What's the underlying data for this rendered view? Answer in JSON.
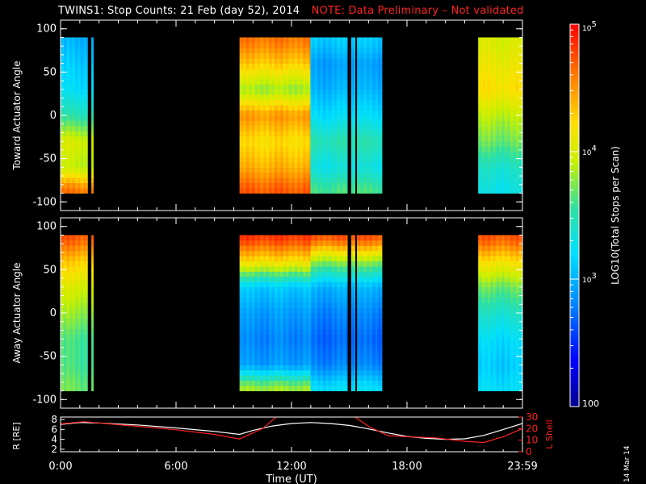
{
  "title": {
    "main": "TWINS1: Stop Counts: 21 Feb (day  52), 2014",
    "note": "NOTE: Data Preliminary – Not validated"
  },
  "datestamp": "14 Mar 14",
  "colorbar": {
    "label": "LOG10(Total Stops per Scan)",
    "ticks": [
      "10^5",
      "10^4",
      "10^3",
      "100"
    ],
    "tick_values": [
      100000,
      10000,
      1000,
      100
    ],
    "scale": "log",
    "range": [
      100,
      100000
    ]
  },
  "chart_data": [
    {
      "type": "heatmap",
      "title": "",
      "ylabel": "Toward Actuator Angle",
      "ylim": [
        -110,
        110
      ],
      "yticks": [
        100,
        50,
        0,
        -50,
        -100
      ],
      "xlim_hours": [
        0,
        24
      ],
      "data_extent_y": [
        -90,
        90
      ],
      "coverage_hours": [
        [
          0.0,
          1.4
        ],
        [
          1.6,
          1.7
        ],
        [
          9.3,
          14.9
        ],
        [
          15.1,
          15.3
        ],
        [
          15.4,
          16.7
        ],
        [
          21.7,
          24.0
        ]
      ],
      "value_note": "counts per scan, log color scale",
      "series": [
        {
          "name": "0:00-1:40",
          "angles": [
            -85,
            -60,
            -30,
            0,
            30,
            60,
            85
          ],
          "log_counts": [
            4.6,
            3.9,
            4.0,
            3.5,
            3.2,
            3.1,
            3.0
          ]
        },
        {
          "name": "9:20-13:00",
          "angles": [
            -85,
            -60,
            -30,
            0,
            30,
            60,
            85
          ],
          "log_counts": [
            4.7,
            4.4,
            4.2,
            4.5,
            3.8,
            4.3,
            4.6
          ]
        },
        {
          "name": "13:00-16:40",
          "angles": [
            -85,
            -60,
            -30,
            0,
            30,
            60,
            85
          ],
          "log_counts": [
            3.6,
            3.3,
            3.5,
            3.2,
            3.0,
            2.9,
            3.1
          ]
        },
        {
          "name": "21:40-24:00",
          "angles": [
            -85,
            -60,
            -30,
            0,
            30,
            60,
            85
          ],
          "log_counts": [
            3.3,
            3.4,
            3.7,
            3.9,
            4.2,
            4.1,
            4.0
          ]
        }
      ]
    },
    {
      "type": "heatmap",
      "title": "",
      "ylabel": "Away Actuator Angle",
      "ylim": [
        -110,
        110
      ],
      "yticks": [
        100,
        50,
        0,
        -50,
        -100
      ],
      "xlim_hours": [
        0,
        24
      ],
      "data_extent_y": [
        -90,
        90
      ],
      "coverage_hours": [
        [
          0.0,
          1.4
        ],
        [
          1.6,
          1.7
        ],
        [
          9.3,
          14.9
        ],
        [
          15.1,
          15.3
        ],
        [
          15.4,
          16.7
        ],
        [
          21.7,
          24.0
        ]
      ],
      "value_note": "counts per scan, log color scale",
      "series": [
        {
          "name": "0:00-1:40",
          "angles": [
            -85,
            -60,
            -30,
            0,
            30,
            60,
            85
          ],
          "log_counts": [
            3.7,
            3.6,
            3.6,
            3.8,
            4.0,
            4.3,
            4.7
          ]
        },
        {
          "name": "9:20-13:00",
          "angles": [
            -85,
            -60,
            -30,
            0,
            30,
            60,
            85
          ],
          "log_counts": [
            3.8,
            2.9,
            2.8,
            2.9,
            3.1,
            4.2,
            4.8
          ]
        },
        {
          "name": "13:00-16:40",
          "angles": [
            -85,
            -60,
            -30,
            0,
            30,
            60,
            85
          ],
          "log_counts": [
            3.2,
            2.8,
            2.7,
            2.8,
            3.0,
            3.8,
            4.7
          ]
        },
        {
          "name": "21:40-24:00",
          "angles": [
            -85,
            -60,
            -30,
            0,
            30,
            60,
            85
          ],
          "log_counts": [
            3.2,
            3.1,
            3.2,
            3.4,
            3.7,
            4.2,
            4.7
          ]
        }
      ]
    },
    {
      "type": "line",
      "title": "",
      "xlabel": "Time (UT)",
      "xticks": [
        "0:00",
        "6:00",
        "12:00",
        "18:00",
        "23:59"
      ],
      "xtick_hours": [
        0,
        6,
        12,
        18,
        24
      ],
      "ylabel": "R [RE]",
      "yticks_left": [
        2,
        4,
        6,
        8
      ],
      "ylim_left": [
        1.5,
        8.5
      ],
      "ylabel_right": "L Shell",
      "yticks_right": [
        0,
        10,
        20,
        30
      ],
      "ylim_right": [
        0,
        30
      ],
      "series": [
        {
          "name": "R [RE]",
          "color": "#ffffff",
          "axis": "left",
          "x": [
            0,
            1,
            2,
            4,
            6,
            8,
            9.3,
            10,
            11,
            12,
            13,
            14,
            15,
            16,
            17,
            18,
            19,
            20,
            21,
            22,
            23,
            24
          ],
          "y": [
            7.0,
            7.4,
            7.3,
            6.9,
            6.3,
            5.6,
            5.0,
            5.8,
            6.7,
            7.2,
            7.4,
            7.2,
            6.8,
            6.1,
            5.3,
            4.6,
            4.2,
            4.0,
            4.1,
            4.8,
            6.0,
            7.2
          ]
        },
        {
          "name": "L Shell",
          "color": "#ff2020",
          "axis": "right",
          "x": [
            0,
            1.2,
            4,
            6,
            8,
            9.3,
            10.5,
            11.2,
            11.4,
            15.0,
            15.3,
            16.0,
            17.0,
            18.0,
            19.5,
            21.0,
            22.0,
            23.0,
            24.0
          ],
          "y": [
            24,
            26,
            22,
            19,
            15,
            11,
            20,
            30,
            31,
            31,
            30,
            22,
            14,
            13,
            12,
            9,
            8,
            13,
            20
          ]
        }
      ]
    }
  ]
}
